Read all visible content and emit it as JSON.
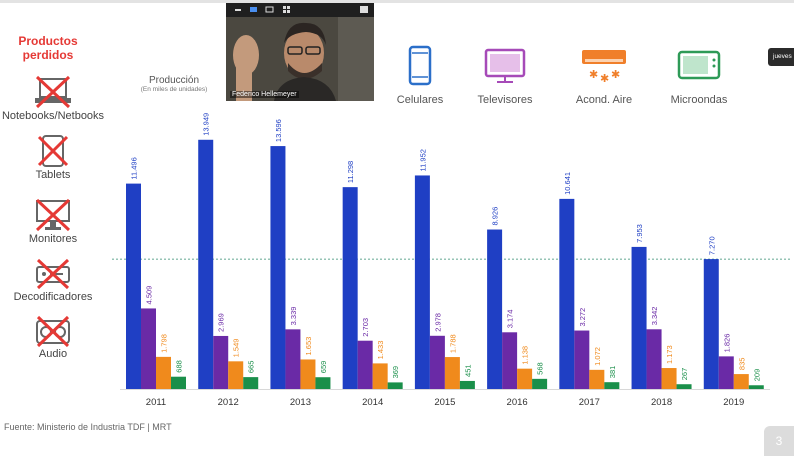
{
  "chart_data": {
    "type": "bar",
    "title": "Producción",
    "subtitle": "(En miles de unidades)",
    "categories": [
      "2011",
      "2012",
      "2013",
      "2014",
      "2015",
      "2016",
      "2017",
      "2018",
      "2019"
    ],
    "series": [
      {
        "name": "Celulares",
        "color": "#1f3fc4",
        "values": [
          11496,
          13949,
          13596,
          11298,
          11952,
          8926,
          10641,
          7953,
          7270
        ],
        "labels": [
          "11.496",
          "13.949",
          "13.596",
          "11.298",
          "11.952",
          "8.926",
          "10.641",
          "7.953",
          "7.270"
        ]
      },
      {
        "name": "Televisores",
        "color": "#6a2aa6",
        "values": [
          4509,
          2969,
          3339,
          2703,
          2978,
          3174,
          3272,
          3342,
          1826
        ],
        "labels": [
          "4.509",
          "2.969",
          "3.339",
          "2.703",
          "2.978",
          "3.174",
          "3.272",
          "3.342",
          "1.826"
        ]
      },
      {
        "name": "Acond. Aire",
        "color": "#f08a1c",
        "values": [
          1798,
          1549,
          1653,
          1433,
          1788,
          1138,
          1072,
          1173,
          835
        ],
        "labels": [
          "1.798",
          "1.549",
          "1.653",
          "1.433",
          "1.788",
          "1.138",
          "1.072",
          "1.173",
          "835"
        ]
      },
      {
        "name": "Microondas",
        "color": "#1a8f4a",
        "values": [
          688,
          665,
          659,
          369,
          451,
          568,
          381,
          267,
          209
        ],
        "labels": [
          "688",
          "665",
          "659",
          "369",
          "451",
          "568",
          "381",
          "267",
          "209"
        ]
      }
    ],
    "ylim": [
      0,
      15000
    ],
    "grid": false,
    "reference_line": 7270,
    "legend": "top-right",
    "source": "Fuente: Ministerio de Industria TDF | MRT"
  },
  "lost_products": {
    "title": [
      "Productos",
      "perdidos"
    ],
    "items": [
      {
        "label": "Notebooks/Netbooks",
        "icon": "laptop-icon"
      },
      {
        "label": "Tablets",
        "icon": "tablet-icon"
      },
      {
        "label": "Monitores",
        "icon": "monitor-icon"
      },
      {
        "label": "Decodificadores",
        "icon": "decoder-icon"
      },
      {
        "label": "Audio",
        "icon": "audio-icon"
      }
    ]
  },
  "categories_header": [
    {
      "label": "Celulares",
      "icon": "phone-icon",
      "color": "#2b6fc9"
    },
    {
      "label": "Televisores",
      "icon": "tv-icon",
      "color": "#a64ab8"
    },
    {
      "label": "Acond. Aire",
      "icon": "air-conditioner-icon",
      "color": "#f07f2a"
    },
    {
      "label": "Microondas",
      "icon": "microwave-icon",
      "color": "#2e9a57"
    }
  ],
  "video": {
    "participant_name": "Federico Hellemeyer"
  },
  "side_tab": "jueves",
  "page_number": "3"
}
